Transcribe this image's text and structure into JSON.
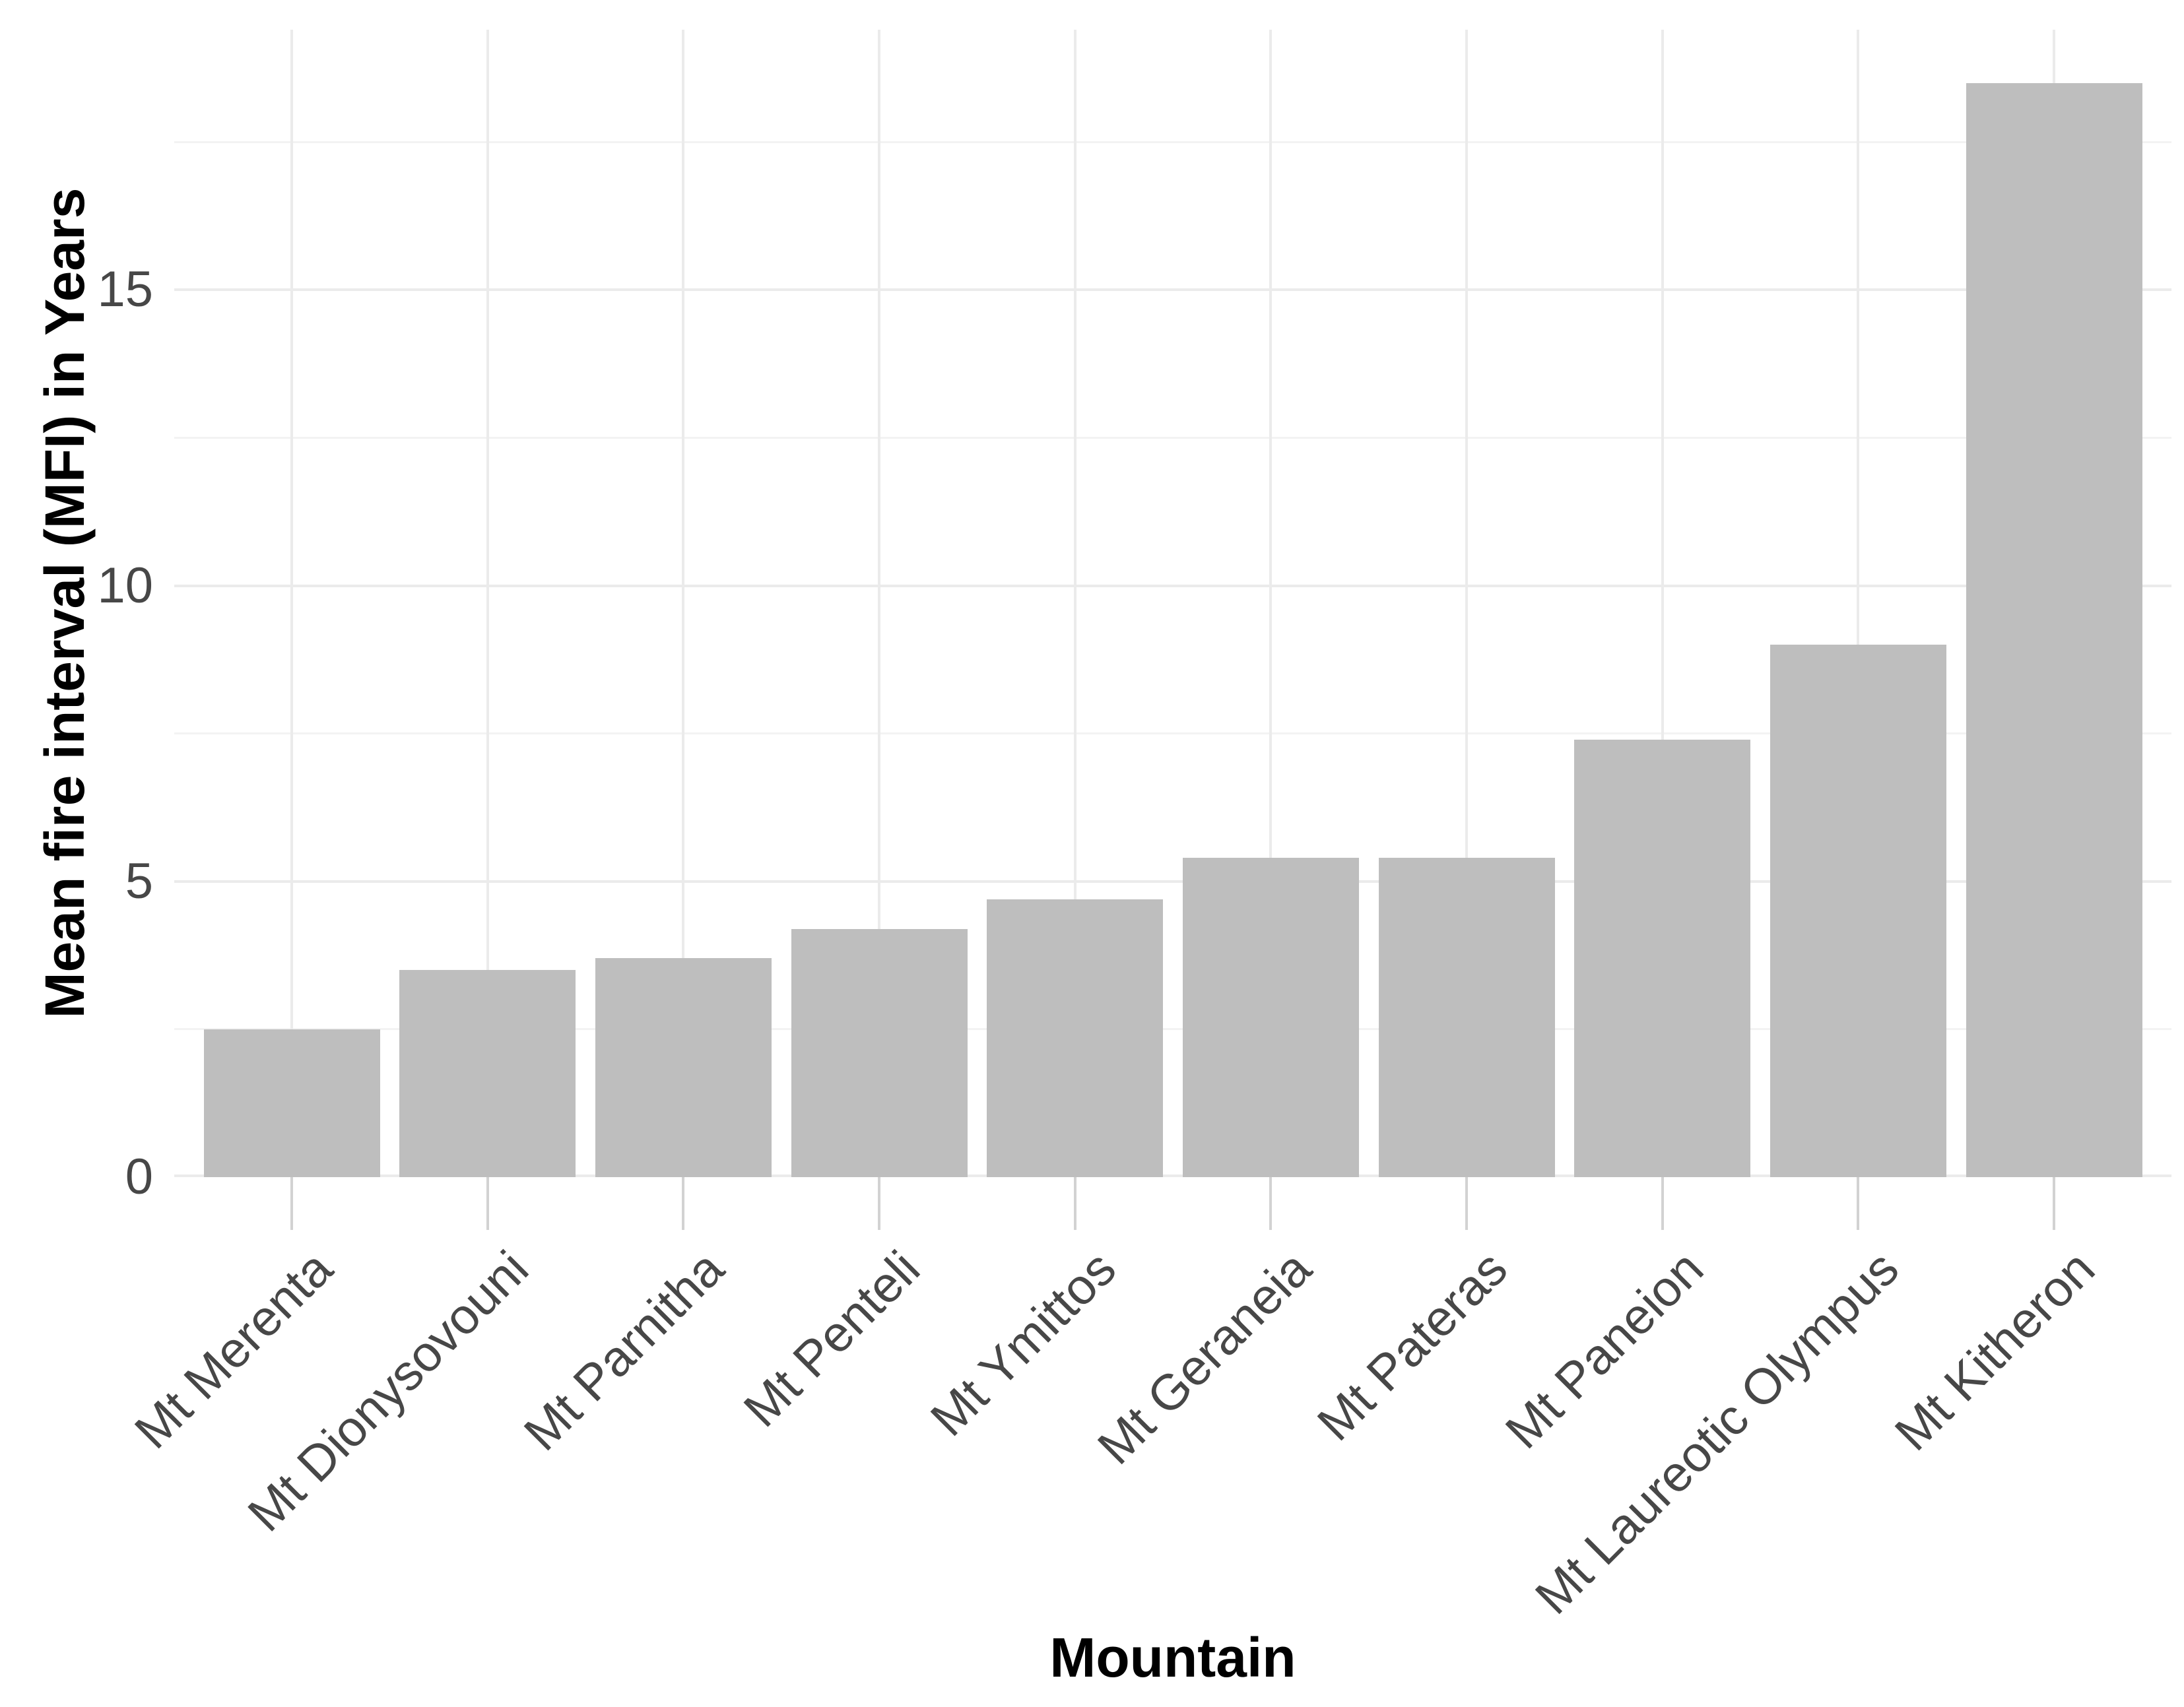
{
  "figure": {
    "background": "#ffffff"
  },
  "chart_data": {
    "type": "bar",
    "title": "",
    "xlabel": "Mountain",
    "ylabel": "Mean fire interval (MFI) in Years",
    "categories": [
      "Mt Merenta",
      "Mt Dionysovouni",
      "Mt Parnitha",
      "Mt Penteli",
      "Mt Ymittos",
      "Mt Geraneia",
      "Mt Pateras",
      "Mt Paneion",
      "Mt Laureotic Olympus",
      "Mt Kitheron"
    ],
    "values": [
      2.5,
      3.5,
      3.7,
      4.2,
      4.7,
      5.4,
      5.4,
      7.4,
      9.0,
      18.5
    ],
    "ylim": [
      0,
      19.4
    ],
    "yticks": [
      0,
      5,
      10,
      15
    ],
    "yticks_minor": [
      2.5,
      7.5,
      12.5,
      17.5
    ],
    "grid": "horizontal major and minor gridlines; vertical major gridline at each category center; no axis lines",
    "legend": "none",
    "bar_fill": "#bebebe",
    "colors": {
      "grid_major": "#ebebeb",
      "grid_minor": "#f3f3f3",
      "tick_mark": "#d2d2d2",
      "tick_label": "#474747",
      "axis_title": "#000000",
      "background": "#ffffff"
    }
  }
}
